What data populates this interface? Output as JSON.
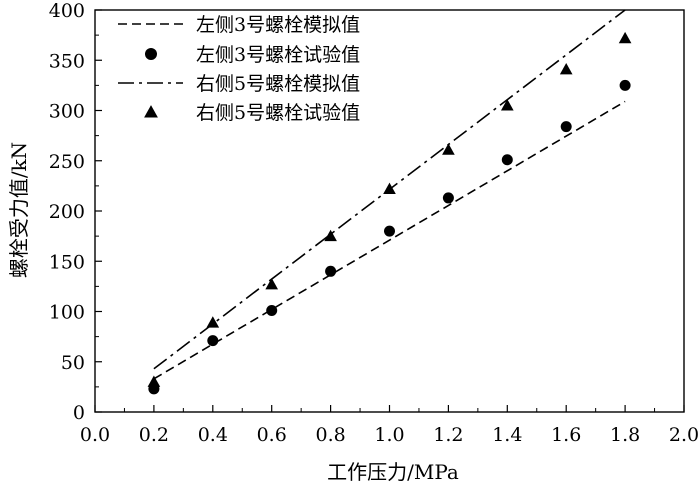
{
  "chart_data": {
    "type": "line",
    "xlabel": "工作压力/MPa",
    "ylabel": "螺栓受力值/kN",
    "xlim": [
      0.0,
      2.0
    ],
    "ylim": [
      0,
      400
    ],
    "x_ticks": [
      0.0,
      0.2,
      0.4,
      0.6,
      0.8,
      1.0,
      1.2,
      1.4,
      1.6,
      1.8,
      2.0
    ],
    "x_tick_labels": [
      "0.0",
      "0.2",
      "0.4",
      "0.6",
      "0.8",
      "1.0",
      "1.2",
      "1.4",
      "1.6",
      "1.8",
      "2.0"
    ],
    "y_ticks": [
      0,
      50,
      100,
      150,
      200,
      250,
      300,
      350,
      400
    ],
    "y_tick_labels": [
      "0",
      "50",
      "100",
      "150",
      "200",
      "250",
      "300",
      "350",
      "400"
    ],
    "grid": false,
    "legend_position": "top-left",
    "series": [
      {
        "name": "左侧3号螺栓模拟值",
        "kind": "line",
        "style": "dashed",
        "color": "#000000",
        "x": [
          0.2,
          1.8
        ],
        "y": [
          33,
          309
        ]
      },
      {
        "name": "左侧3号螺栓试验值",
        "kind": "scatter",
        "marker": "circle",
        "color": "#000000",
        "x": [
          0.2,
          0.4,
          0.6,
          0.8,
          1.0,
          1.2,
          1.4,
          1.6,
          1.8
        ],
        "y": [
          23,
          71,
          101,
          140,
          180,
          213,
          251,
          284,
          325
        ]
      },
      {
        "name": "右侧5号螺栓模拟值",
        "kind": "line",
        "style": "dash-dot",
        "color": "#000000",
        "x": [
          0.2,
          1.8
        ],
        "y": [
          43,
          400
        ]
      },
      {
        "name": "右侧5号螺栓试验值",
        "kind": "scatter",
        "marker": "triangle",
        "color": "#000000",
        "x": [
          0.2,
          0.4,
          0.6,
          0.8,
          1.0,
          1.2,
          1.4,
          1.6,
          1.8
        ],
        "y": [
          30,
          89,
          127,
          175,
          222,
          261,
          305,
          341,
          372
        ]
      }
    ]
  }
}
